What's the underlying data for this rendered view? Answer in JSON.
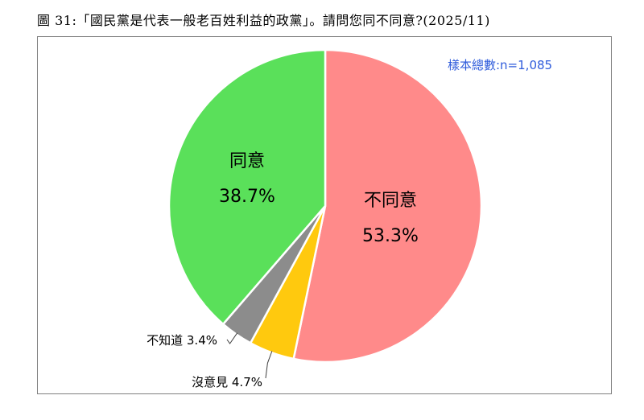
{
  "title": "圖 31:「國民黨是代表一般老百姓利益的政黨」。請問您同不同意?(2025/11)",
  "sample_label": "樣本總數:n=1,085",
  "chart_data": {
    "type": "pie",
    "title": "圖 31:「國民黨是代表一般老百姓利益的政黨」。請問您同不同意?(2025/11)",
    "slices": [
      {
        "label": "不同意",
        "value": 53.3,
        "display": "53.3%",
        "color": "#ff8a8a"
      },
      {
        "label": "沒意見",
        "value": 4.7,
        "display": "4.7%",
        "color": "#ffc90e"
      },
      {
        "label": "不知道",
        "value": 3.4,
        "display": "3.4%",
        "color": "#8c8c8c"
      },
      {
        "label": "同意",
        "value": 38.7,
        "display": "38.7%",
        "color": "#5ae05a"
      }
    ]
  }
}
